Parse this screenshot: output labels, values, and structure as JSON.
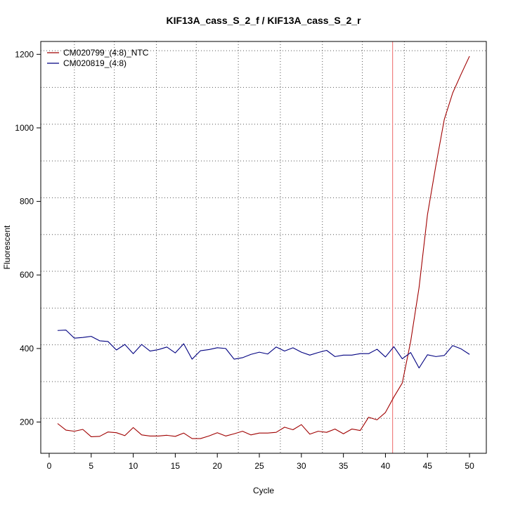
{
  "chart_data": {
    "type": "line",
    "title": "KIF13A_cass_S_2_f / KIF13A_cass_S_2_r",
    "xlabel": "Cycle",
    "ylabel": "Fluorescent",
    "xlim": [
      -1,
      52
    ],
    "ylim": [
      115,
      1235
    ],
    "xticks": [
      0,
      5,
      10,
      15,
      20,
      25,
      30,
      35,
      40,
      45,
      50
    ],
    "yticks": [
      200,
      400,
      600,
      800,
      1000,
      1200
    ],
    "grid": true,
    "grid_style": "dotted",
    "grid_x": [
      3,
      7.75,
      12.75,
      17.5,
      22.5,
      27.5,
      32.5,
      37.25,
      42.25,
      47.25
    ],
    "grid_y": [
      110,
      210,
      310,
      410,
      510,
      610,
      710,
      810,
      910,
      1010,
      1110,
      1210
    ],
    "legend_position": "top-left",
    "threshold_cycle": 40.85,
    "threshold_color": "#f08080",
    "x": [
      1,
      2,
      3,
      4,
      5,
      6,
      7,
      8,
      9,
      10,
      11,
      12,
      13,
      14,
      15,
      16,
      17,
      18,
      19,
      20,
      21,
      22,
      23,
      24,
      25,
      26,
      27,
      28,
      29,
      30,
      31,
      32,
      33,
      34,
      35,
      36,
      37,
      38,
      39,
      40,
      41,
      42,
      43,
      44,
      45,
      46,
      47,
      48,
      49,
      50
    ],
    "series": [
      {
        "name": "CM020799_(4:8)_NTC",
        "color": "#a00000",
        "values": [
          196,
          178,
          175,
          180,
          160,
          161,
          173,
          171,
          163,
          185,
          165,
          162,
          162,
          164,
          161,
          170,
          155,
          155,
          162,
          171,
          162,
          168,
          175,
          165,
          170,
          170,
          172,
          186,
          179,
          193,
          167,
          175,
          172,
          181,
          168,
          181,
          177,
          213,
          206,
          226,
          268,
          306,
          419,
          566,
          764,
          898,
          1023,
          1095,
          1146,
          1195
        ]
      },
      {
        "name": "CM020819_(4:8)",
        "color": "#000080",
        "values": [
          449,
          450,
          428,
          430,
          433,
          421,
          419,
          396,
          411,
          386,
          411,
          393,
          397,
          404,
          388,
          413,
          371,
          394,
          397,
          402,
          400,
          371,
          375,
          384,
          390,
          385,
          404,
          393,
          402,
          390,
          382,
          389,
          395,
          378,
          382,
          382,
          386,
          386,
          398,
          377,
          405,
          372,
          389,
          347,
          383,
          378,
          381,
          408,
          399,
          384
        ]
      }
    ]
  }
}
